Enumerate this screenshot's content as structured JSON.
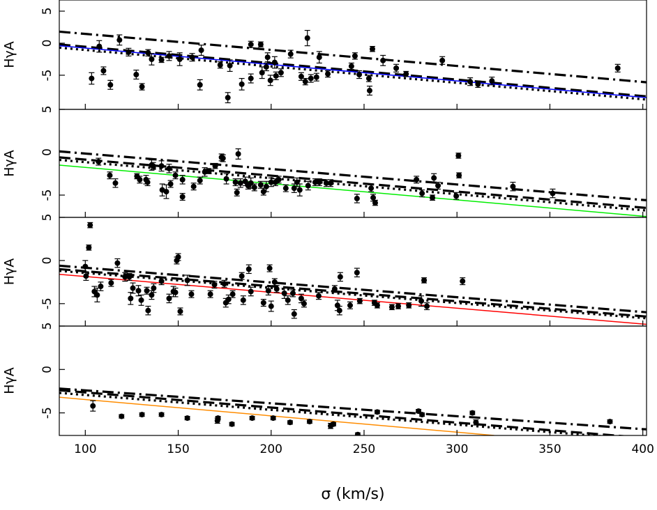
{
  "chart_data": [
    {
      "type": "scatter",
      "y_label": "HγA",
      "xlim": [
        86,
        402
      ],
      "ylim": [
        -10.33,
        6.74
      ],
      "yticks": [
        5,
        0,
        -5
      ],
      "point_color": "#000000",
      "x": [
        103.4,
        107.5,
        109.8,
        113.5,
        118.4,
        123.3,
        127.4,
        130.5,
        133.8,
        135.7,
        141.0,
        145.1,
        150.8,
        157.5,
        161.7,
        162.4,
        172.6,
        177.8,
        176.7,
        184.2,
        189.1,
        189.1,
        194.4,
        195.1,
        197.4,
        198.1,
        199.6,
        201.9,
        202.6,
        205.3,
        210.5,
        216.2,
        218.4,
        219.5,
        221.4,
        224.4,
        225.9,
        230.5,
        243.2,
        245.1,
        247.4,
        252.6,
        253.0,
        254.5,
        260.2,
        267.3,
        272.6,
        292.1,
        307.1,
        311.3,
        318.8,
        386.5
      ],
      "y": [
        -5.5,
        -0.5,
        -4.3,
        -6.5,
        0.5,
        -1.4,
        -4.9,
        -6.8,
        -1.5,
        -2.5,
        -2.6,
        -2.0,
        -2.5,
        -2.2,
        -6.5,
        -1.1,
        -3.4,
        -3.5,
        -8.5,
        -6.4,
        -0.2,
        -5.5,
        -0.2,
        -4.6,
        -3.7,
        -2.2,
        -5.8,
        -3.0,
        -5.1,
        -4.6,
        -1.7,
        -5.2,
        -6.0,
        0.8,
        -5.5,
        -5.3,
        -2.2,
        -4.8,
        -3.6,
        -2.0,
        -4.9,
        -5.5,
        -7.4,
        -0.9,
        -2.7,
        -3.9,
        -4.8,
        -2.7,
        -6.0,
        -6.4,
        -5.9,
        -3.9
      ],
      "errors": [
        0.9,
        0.9,
        0.6,
        0.7,
        0.8,
        0.6,
        0.7,
        0.5,
        0.5,
        0.9,
        0.4,
        0.7,
        1.0,
        0.6,
        0.8,
        0.8,
        0.5,
        0.9,
        0.8,
        0.9,
        0.5,
        0.7,
        0.4,
        0.9,
        0.6,
        0.7,
        0.8,
        0.9,
        0.6,
        0.6,
        0.6,
        0.6,
        0.5,
        1.2,
        0.6,
        0.6,
        0.9,
        0.5,
        0.5,
        0.5,
        0.6,
        0.5,
        0.7,
        0.4,
        0.8,
        0.6,
        0.4,
        0.6,
        0.6,
        0.5,
        0.6,
        0.6
      ],
      "lines": [
        {
          "style": "dotdash",
          "color": "#000000",
          "x": [
            86,
            402
          ],
          "y": [
            1.8,
            -6.1
          ]
        },
        {
          "style": "dashed",
          "color": "#000000",
          "x": [
            86,
            402
          ],
          "y": [
            -0.2,
            -8.3
          ]
        },
        {
          "style": "dotted",
          "color": "#000000",
          "x": [
            86,
            402
          ],
          "y": [
            -0.7,
            -8.8
          ]
        },
        {
          "style": "solid",
          "color": "#0000ff",
          "x": [
            86,
            402
          ],
          "y": [
            -0.4,
            -8.5
          ]
        }
      ]
    },
    {
      "type": "scatter",
      "y_label": "HγA",
      "xlim": [
        86,
        402
      ],
      "ylim": [
        -7.6,
        5
      ],
      "yticks": [
        5,
        0,
        -5
      ],
      "point_color": "#000000",
      "x": [
        107.1,
        113.2,
        116.2,
        127.8,
        129.3,
        132.7,
        133.5,
        135.7,
        136.5,
        141.0,
        141.4,
        143.6,
        145.1,
        145.9,
        148.5,
        152.3,
        152.3,
        158.3,
        161.7,
        164.3,
        166.5,
        169.9,
        173.3,
        174.1,
        175.9,
        180.8,
        181.6,
        182.3,
        183.5,
        186.1,
        187.6,
        189.1,
        191.0,
        194.4,
        195.9,
        197.4,
        200.0,
        202.3,
        204.1,
        207.9,
        212.4,
        213.9,
        215.4,
        219.9,
        223.7,
        225.9,
        229.7,
        232.0,
        246.2,
        253.8,
        254.9,
        256.0,
        278.2,
        281.2,
        286.8,
        287.6,
        289.8,
        299.6,
        300.8,
        301.1,
        330.1,
        351.5
      ],
      "y": [
        -1.1,
        -2.7,
        -3.6,
        -2.8,
        -3.2,
        -3.2,
        -3.5,
        -1.5,
        -1.6,
        -1.6,
        -4.4,
        -4.6,
        -1.9,
        -3.7,
        -2.7,
        -3.2,
        -5.2,
        -4.0,
        -3.3,
        -2.3,
        -2.2,
        -1.6,
        -0.6,
        -0.7,
        -3.1,
        -3.5,
        -4.7,
        -0.2,
        -3.6,
        -3.4,
        -3.9,
        -3.6,
        -4.1,
        -3.8,
        -4.6,
        -4.0,
        -3.5,
        -3.5,
        -3.2,
        -4.2,
        -4.2,
        -3.5,
        -4.4,
        -3.9,
        -3.5,
        -3.5,
        -3.6,
        -3.6,
        -5.4,
        -4.2,
        -5.3,
        -5.9,
        -3.2,
        -4.8,
        -5.3,
        -3.0,
        -3.9,
        -5.1,
        -0.4,
        -2.7,
        -4.0,
        -4.8
      ],
      "errors": [
        0.4,
        0.4,
        0.5,
        0.3,
        0.4,
        0.5,
        0.4,
        0.6,
        0.4,
        0.6,
        0.7,
        0.8,
        0.5,
        0.4,
        0.4,
        0.5,
        0.4,
        0.4,
        0.4,
        0.5,
        0.3,
        0.3,
        0.4,
        0.4,
        0.6,
        0.4,
        0.4,
        0.6,
        0.5,
        0.5,
        0.4,
        0.6,
        0.4,
        0.4,
        0.4,
        0.6,
        0.5,
        0.4,
        0.4,
        0.4,
        0.5,
        0.5,
        0.7,
        0.5,
        0.4,
        0.4,
        0.4,
        0.4,
        0.5,
        0.4,
        0.4,
        0.3,
        0.4,
        0.4,
        0.3,
        0.5,
        0.4,
        0.4,
        0.3,
        0.3,
        0.5,
        0.5
      ],
      "lines": [
        {
          "style": "dotdash",
          "color": "#000000",
          "x": [
            86,
            402
          ],
          "y": [
            0.1,
            -5.6
          ]
        },
        {
          "style": "dashed",
          "color": "#000000",
          "x": [
            86,
            402
          ],
          "y": [
            -0.6,
            -6.5
          ]
        },
        {
          "style": "dotted",
          "color": "#000000",
          "x": [
            86,
            402
          ],
          "y": [
            -0.9,
            -6.8
          ]
        },
        {
          "style": "solid",
          "color": "#00ee00",
          "x": [
            86,
            402
          ],
          "y": [
            -1.5,
            -7.5
          ]
        }
      ]
    },
    {
      "type": "scatter",
      "y_label": "HγA",
      "xlim": [
        86,
        402
      ],
      "ylim": [
        -7.6,
        5
      ],
      "yticks": [
        5,
        0,
        -5
      ],
      "point_color": "#000000",
      "x": [
        100.0,
        100.4,
        104.9,
        106.4,
        108.3,
        113.9,
        117.3,
        121.4,
        123.7,
        124.4,
        125.6,
        128.6,
        130.1,
        133.1,
        133.8,
        135.7,
        136.8,
        141.0,
        145.1,
        147.4,
        148.5,
        149.2,
        150.0,
        151.1,
        154.9,
        157.1,
        167.3,
        169.5,
        174.8,
        175.6,
        177.1,
        179.3,
        184.2,
        185.0,
        188.0,
        189.1,
        195.9,
        198.5,
        199.2,
        200.0,
        201.9,
        203.0,
        207.1,
        209.0,
        211.7,
        212.4,
        216.2,
        217.7,
        225.6,
        234.2,
        235.7,
        236.8,
        237.2,
        242.5,
        246.2,
        247.7,
        255.6,
        257.1,
        265.0,
        268.4,
        274.1,
        280.8,
        282.3,
        283.8,
        303.0,
        102.6,
        101.9
      ],
      "y": [
        -0.7,
        -1.8,
        -3.6,
        -4.0,
        -3.0,
        -2.6,
        -0.3,
        -1.9,
        -1.9,
        -4.4,
        -3.2,
        -3.5,
        -4.6,
        -3.5,
        -5.8,
        -4.0,
        -3.2,
        -2.4,
        -4.4,
        -3.6,
        -3.7,
        0.0,
        0.4,
        -5.9,
        -2.3,
        -3.9,
        -3.9,
        -2.8,
        -2.7,
        -4.9,
        -4.5,
        -3.9,
        -1.8,
        -4.6,
        -1.0,
        -3.6,
        -4.9,
        -3.5,
        -0.9,
        -5.3,
        -2.5,
        -3.3,
        -3.8,
        -4.6,
        -3.8,
        -6.2,
        -4.4,
        -5.0,
        -4.1,
        -3.3,
        -5.2,
        -5.8,
        -1.9,
        -5.2,
        -1.4,
        -4.7,
        -4.9,
        -5.2,
        -5.4,
        -5.3,
        -5.2,
        -4.7,
        -2.3,
        -5.3,
        -2.4,
        4.1,
        1.5
      ],
      "errors": [
        0.7,
        0.5,
        0.6,
        0.8,
        0.5,
        0.4,
        0.5,
        0.5,
        0.4,
        0.7,
        0.6,
        0.6,
        0.6,
        0.4,
        0.5,
        0.5,
        0.5,
        0.4,
        0.5,
        0.6,
        0.5,
        0.4,
        0.4,
        0.4,
        0.6,
        0.4,
        0.4,
        0.4,
        0.4,
        0.5,
        0.5,
        0.4,
        0.4,
        0.5,
        0.5,
        0.5,
        0.4,
        0.5,
        0.4,
        0.6,
        0.4,
        0.4,
        0.6,
        0.5,
        0.4,
        0.5,
        0.5,
        0.4,
        0.4,
        0.4,
        0.6,
        0.5,
        0.5,
        0.4,
        0.5,
        0.3,
        0.3,
        0.3,
        0.3,
        0.3,
        0.3,
        0.6,
        0.3,
        0.4,
        0.4,
        0.3,
        0.3
      ],
      "lines": [
        {
          "style": "dotdash",
          "color": "#000000",
          "x": [
            86,
            402
          ],
          "y": [
            -0.6,
            -6.0
          ]
        },
        {
          "style": "dashed",
          "color": "#000000",
          "x": [
            86,
            402
          ],
          "y": [
            -1.0,
            -6.5
          ]
        },
        {
          "style": "dotted",
          "color": "#000000",
          "x": [
            86,
            402
          ],
          "y": [
            -1.2,
            -6.7
          ]
        },
        {
          "style": "solid",
          "color": "#ff0000",
          "x": [
            86,
            402
          ],
          "y": [
            -1.6,
            -7.4
          ]
        }
      ]
    },
    {
      "type": "scatter",
      "y_label": "HγA",
      "x_label": "σ (km/s)",
      "xlim": [
        86,
        402
      ],
      "ylim": [
        -7.6,
        5
      ],
      "yticks": [
        5,
        0,
        -5
      ],
      "xticks": [
        100,
        150,
        200,
        250,
        300,
        350,
        400
      ],
      "point_color": "#000000",
      "x": [
        104.1,
        119.5,
        130.5,
        141.0,
        154.9,
        171.1,
        171.4,
        178.9,
        189.8,
        201.1,
        210.2,
        220.7,
        232.0,
        233.5,
        246.6,
        257.1,
        279.3,
        281.2,
        308.3,
        310.2,
        382.3
      ],
      "y": [
        -4.2,
        -5.4,
        -5.2,
        -5.2,
        -5.6,
        -5.9,
        -5.6,
        -6.3,
        -5.6,
        -5.6,
        -6.1,
        -6.0,
        -6.5,
        -6.3,
        -7.5,
        -4.9,
        -4.8,
        -5.2,
        -5.0,
        -6.1,
        -6.0
      ],
      "errors": [
        0.6,
        0.2,
        0.2,
        0.2,
        0.2,
        0.3,
        0.2,
        0.2,
        0.2,
        0.2,
        0.2,
        0.2,
        0.3,
        0.2,
        0.2,
        0.2,
        0.2,
        0.2,
        0.2,
        0.3,
        0.2
      ],
      "lines": [
        {
          "style": "dotdash",
          "color": "#000000",
          "x": [
            86,
            402
          ],
          "y": [
            -2.2,
            -6.9
          ]
        },
        {
          "style": "dashed",
          "color": "#000000",
          "x": [
            86,
            402
          ],
          "y": [
            -2.4,
            -7.9
          ]
        },
        {
          "style": "dotted",
          "color": "#000000",
          "x": [
            86,
            402
          ],
          "y": [
            -2.7,
            -8.1
          ]
        },
        {
          "style": "solid",
          "color": "#ff8c00",
          "x": [
            86,
            320
          ],
          "y": [
            -3.2,
            -7.6
          ]
        }
      ]
    }
  ]
}
